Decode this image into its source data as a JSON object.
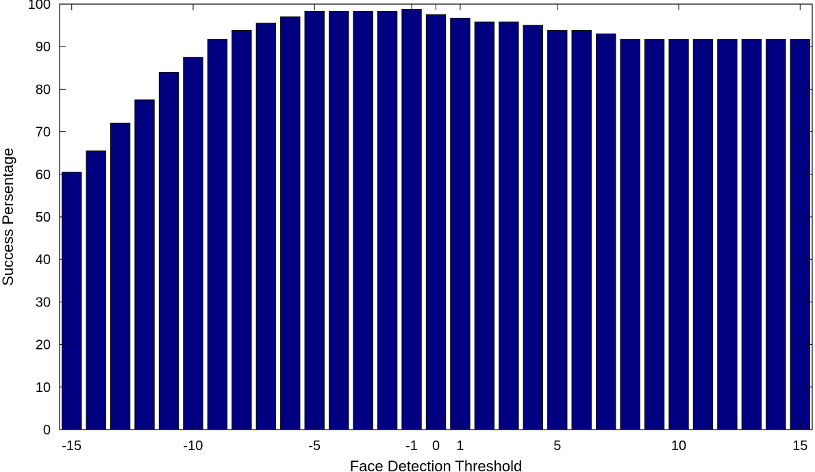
{
  "chart_data": {
    "type": "bar",
    "title": "",
    "xlabel": "Face Detection Threshold",
    "ylabel": "Success Persentage",
    "x": [
      -15,
      -14,
      -13,
      -12,
      -11,
      -10,
      -9,
      -8,
      -7,
      -6,
      -5,
      -4,
      -3,
      -2,
      -1,
      0,
      1,
      2,
      3,
      4,
      5,
      6,
      7,
      8,
      9,
      10,
      11,
      12,
      13,
      14,
      15
    ],
    "values": [
      60.5,
      65.5,
      72,
      77.5,
      84,
      87.5,
      91.7,
      93.8,
      95.5,
      97,
      98.3,
      98.3,
      98.3,
      98.3,
      98.8,
      97.5,
      96.7,
      95.8,
      95.8,
      95,
      93.8,
      93.8,
      93,
      91.7,
      91.7,
      91.7,
      91.7,
      91.7,
      91.7,
      91.7,
      91.7
    ],
    "xlim": [
      -15.5,
      15.5
    ],
    "ylim": [
      0,
      100
    ],
    "xticks": [
      {
        "value": -15,
        "label": "-15"
      },
      {
        "value": -10,
        "label": "-10"
      },
      {
        "value": -5,
        "label": "-5"
      },
      {
        "value": -1,
        "label": "-1"
      },
      {
        "value": 0,
        "label": "0"
      },
      {
        "value": 1,
        "label": "1"
      },
      {
        "value": 5,
        "label": "5"
      },
      {
        "value": 10,
        "label": "10"
      },
      {
        "value": 15,
        "label": "15"
      }
    ],
    "yticks": [
      {
        "value": 0,
        "label": "0"
      },
      {
        "value": 10,
        "label": "10"
      },
      {
        "value": 20,
        "label": "20"
      },
      {
        "value": 30,
        "label": "30"
      },
      {
        "value": 40,
        "label": "40"
      },
      {
        "value": 50,
        "label": "50"
      },
      {
        "value": 60,
        "label": "60"
      },
      {
        "value": 70,
        "label": "70"
      },
      {
        "value": 80,
        "label": "80"
      },
      {
        "value": 90,
        "label": "90"
      },
      {
        "value": 100,
        "label": "100"
      }
    ],
    "bar_color": "#000080",
    "grid": false,
    "legend": "none"
  }
}
